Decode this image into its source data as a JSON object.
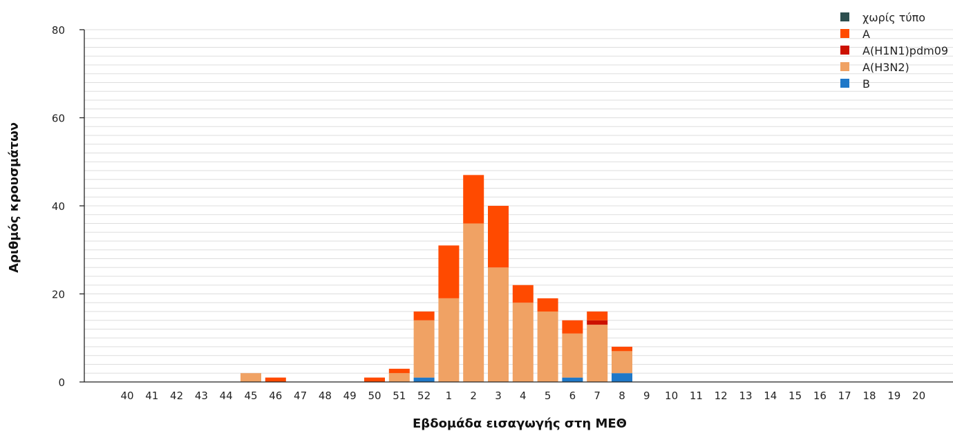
{
  "chart_data": {
    "type": "bar",
    "stacked": true,
    "xlabel": "Εβδομάδα εισαγωγής στη ΜΕΘ",
    "ylabel": "Αριθμός κρουσμάτων",
    "ylim": [
      0,
      80
    ],
    "yticks": [
      0,
      20,
      40,
      60,
      80
    ],
    "grid": true,
    "legend_position": "top-right",
    "categories": [
      "40",
      "41",
      "42",
      "43",
      "44",
      "45",
      "46",
      "47",
      "48",
      "49",
      "50",
      "51",
      "52",
      "1",
      "2",
      "3",
      "4",
      "5",
      "6",
      "7",
      "8",
      "9",
      "10",
      "11",
      "12",
      "13",
      "14",
      "15",
      "16",
      "17",
      "18",
      "19",
      "20"
    ],
    "series": [
      {
        "name": "B",
        "color": "#1f78c8",
        "values": [
          0,
          0,
          0,
          0,
          0,
          0,
          0,
          0,
          0,
          0,
          0,
          0,
          1,
          0,
          0,
          0,
          0,
          0,
          1,
          0,
          2,
          0,
          0,
          0,
          0,
          0,
          0,
          0,
          0,
          0,
          0,
          0,
          0
        ]
      },
      {
        "name": "A(H3N2)",
        "color": "#f0a264",
        "values": [
          0,
          0,
          0,
          0,
          0,
          2,
          0,
          0,
          0,
          0,
          0,
          2,
          13,
          19,
          36,
          26,
          18,
          16,
          10,
          13,
          5,
          0,
          0,
          0,
          0,
          0,
          0,
          0,
          0,
          0,
          0,
          0,
          0
        ]
      },
      {
        "name": "A(H1N1)pdm09",
        "color": "#cc1100",
        "values": [
          0,
          0,
          0,
          0,
          0,
          0,
          0,
          0,
          0,
          0,
          0,
          0,
          0,
          0,
          0,
          0,
          0,
          0,
          0,
          1,
          0,
          0,
          0,
          0,
          0,
          0,
          0,
          0,
          0,
          0,
          0,
          0,
          0
        ]
      },
      {
        "name": "A",
        "color": "#ff4a00",
        "values": [
          0,
          0,
          0,
          0,
          0,
          0,
          1,
          0,
          0,
          0,
          1,
          1,
          2,
          12,
          11,
          14,
          4,
          3,
          3,
          2,
          1,
          0,
          0,
          0,
          0,
          0,
          0,
          0,
          0,
          0,
          0,
          0,
          0
        ]
      },
      {
        "name": "χωρίς τύπο",
        "color": "#2d4f4f",
        "values": [
          0,
          0,
          0,
          0,
          0,
          0,
          0,
          0,
          0,
          0,
          0,
          0,
          0,
          0,
          0,
          0,
          0,
          0,
          0,
          0,
          0,
          0,
          0,
          0,
          0,
          0,
          0,
          0,
          0,
          0,
          0,
          0,
          0
        ]
      }
    ],
    "legend_order": [
      "χωρίς τύπο",
      "A",
      "A(H1N1)pdm09",
      "A(H3N2)",
      "B"
    ]
  }
}
